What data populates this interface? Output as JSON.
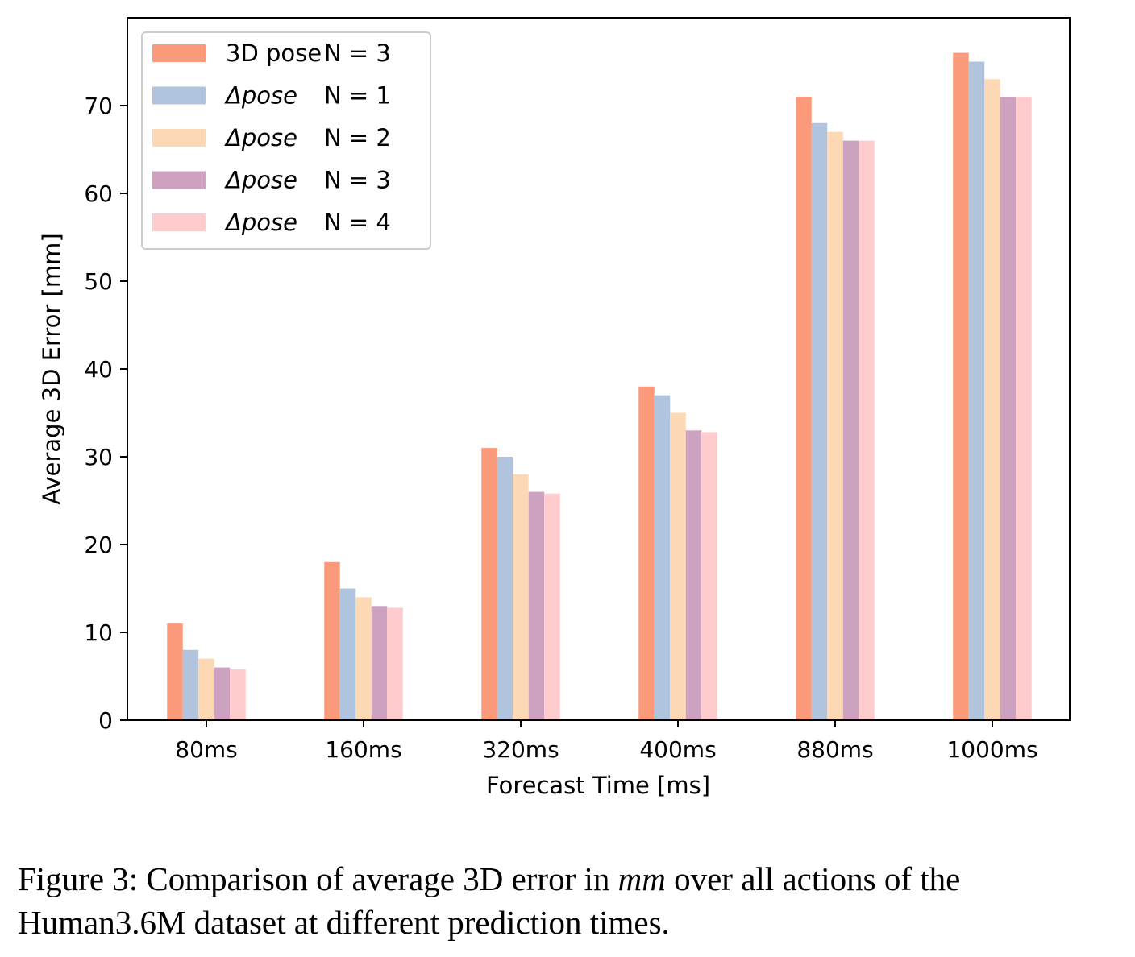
{
  "chart_data": {
    "type": "bar",
    "title": "",
    "xlabel": "Forecast Time [ms]",
    "ylabel": "Average 3D Error [mm]",
    "ylim": [
      0,
      80
    ],
    "yticks": [
      "0",
      "10",
      "20",
      "30",
      "40",
      "50",
      "60",
      "70"
    ],
    "categories": [
      "80ms",
      "160ms",
      "320ms",
      "400ms",
      "880ms",
      "1000ms"
    ],
    "series": [
      {
        "name": "3D pose N = 3",
        "label_main": "3D pose ",
        "label_n": "N = 3",
        "color": "#fb9a7a",
        "values": [
          11,
          18,
          31,
          38,
          71,
          76
        ]
      },
      {
        "name": "Δpose N = 1",
        "label_main": "Δpose",
        "label_n": "N = 1",
        "color": "#b0c4de",
        "values": [
          8,
          15,
          30,
          37,
          68,
          75
        ]
      },
      {
        "name": "Δpose N = 2",
        "label_main": "Δpose",
        "label_n": "N = 2",
        "color": "#fdd8b5",
        "values": [
          7,
          14,
          28,
          35,
          67,
          73
        ]
      },
      {
        "name": "Δpose N = 3",
        "label_main": "Δpose",
        "label_n": "N = 3",
        "color": "#cda2c0",
        "values": [
          6,
          13,
          26,
          33,
          66,
          71
        ]
      },
      {
        "name": "Δpose N = 4",
        "label_main": "Δpose",
        "label_n": "N = 4",
        "color": "#ffccce",
        "values": [
          5.8,
          12.8,
          25.8,
          32.8,
          66,
          71
        ]
      }
    ],
    "legend_position": "top-left"
  },
  "caption": {
    "before": "Figure 3: Comparison of average 3D error in ",
    "math": "mm",
    "after": " over all actions of the Human3.6M dataset at different prediction times."
  }
}
